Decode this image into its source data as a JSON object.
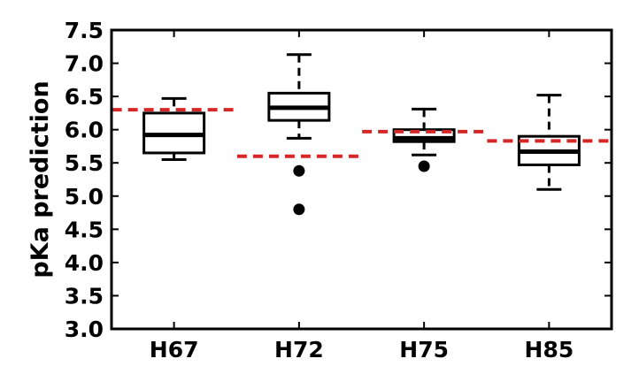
{
  "chart_data": {
    "type": "boxplot",
    "title": "",
    "xlabel": "",
    "ylabel": "pKa prediction",
    "ylim": [
      3.0,
      7.5
    ],
    "yticks": [
      "3.0",
      "3.5",
      "4.0",
      "4.5",
      "5.0",
      "5.5",
      "6.0",
      "6.5",
      "7.0",
      "7.5"
    ],
    "categories": [
      "H67",
      "H72",
      "H75",
      "H85"
    ],
    "grid": false,
    "legend": "none",
    "boxes": [
      {
        "category": "H67",
        "whisker_low": 5.55,
        "q1": 5.65,
        "median": 5.92,
        "q3": 6.25,
        "whisker_high": 6.47,
        "outliers": [],
        "reference": 6.3
      },
      {
        "category": "H72",
        "whisker_low": 5.87,
        "q1": 6.14,
        "median": 6.33,
        "q3": 6.55,
        "whisker_high": 7.13,
        "outliers": [
          5.38,
          4.8
        ],
        "reference": 5.6
      },
      {
        "category": "H75",
        "whisker_low": 5.62,
        "q1": 5.82,
        "median": 5.87,
        "q3": 6.0,
        "whisker_high": 6.31,
        "outliers": [
          5.45
        ],
        "reference": 5.97
      },
      {
        "category": "H85",
        "whisker_low": 5.1,
        "q1": 5.47,
        "median": 5.67,
        "q3": 5.9,
        "whisker_high": 6.52,
        "outliers": [],
        "reference": 5.83
      }
    ],
    "colors": {
      "box": "#000000",
      "reference_line": "#d62728",
      "outlier": "#000000"
    }
  }
}
